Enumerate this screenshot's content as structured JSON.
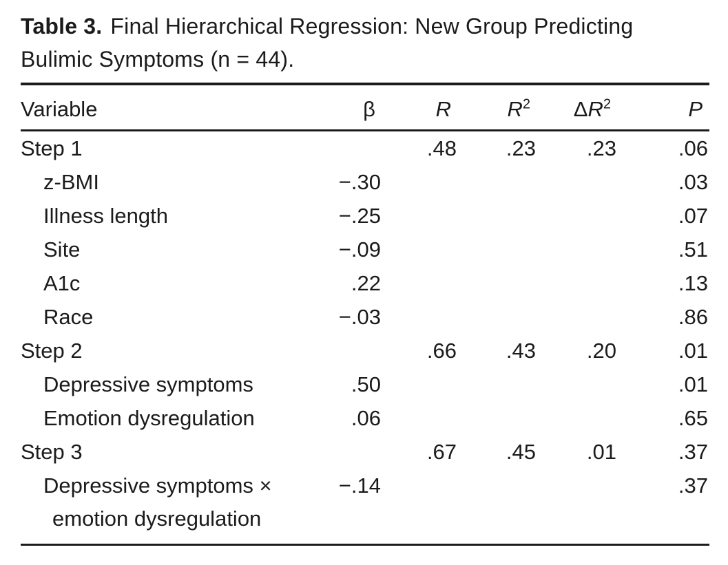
{
  "title": {
    "label": "Table 3.",
    "line1": "Final Hierarchical Regression: New Group Predicting",
    "line2": "Bulimic Symptoms (n = 44)."
  },
  "columns": {
    "variable": {
      "label": "Variable"
    },
    "beta": {
      "label": "β"
    },
    "r": {
      "letter": "R"
    },
    "r2": {
      "letter": "R",
      "sup": "2"
    },
    "dr2": {
      "prefix": "Δ",
      "letter": "R",
      "sup": "2"
    },
    "p": {
      "letter": "P"
    }
  },
  "rows": [
    {
      "variable": "Step 1",
      "indent": 0,
      "beta": "",
      "R": ".48",
      "R2": ".23",
      "dR2": ".23",
      "P": ".06"
    },
    {
      "variable": "z-BMI",
      "indent": 1,
      "beta": "−.30",
      "R": "",
      "R2": "",
      "dR2": "",
      "P": ".03"
    },
    {
      "variable": "Illness length",
      "indent": 1,
      "beta": "−.25",
      "R": "",
      "R2": "",
      "dR2": "",
      "P": ".07"
    },
    {
      "variable": "Site",
      "indent": 1,
      "beta": "−.09",
      "R": "",
      "R2": "",
      "dR2": "",
      "P": ".51"
    },
    {
      "variable": "A1c",
      "indent": 1,
      "beta": ".22",
      "R": "",
      "R2": "",
      "dR2": "",
      "P": ".13"
    },
    {
      "variable": "Race",
      "indent": 1,
      "beta": "−.03",
      "R": "",
      "R2": "",
      "dR2": "",
      "P": ".86"
    },
    {
      "variable": "Step 2",
      "indent": 0,
      "beta": "",
      "R": ".66",
      "R2": ".43",
      "dR2": ".20",
      "P": ".01"
    },
    {
      "variable": "Depressive symptoms",
      "indent": 1,
      "beta": ".50",
      "R": "",
      "R2": "",
      "dR2": "",
      "P": ".01"
    },
    {
      "variable": "Emotion dysregulation",
      "indent": 1,
      "beta": ".06",
      "R": "",
      "R2": "",
      "dR2": "",
      "P": ".65"
    },
    {
      "variable": "Step 3",
      "indent": 0,
      "beta": "",
      "R": ".67",
      "R2": ".45",
      "dR2": ".01",
      "P": ".37"
    },
    {
      "variable": "Depressive symptoms ×",
      "variable_line2": "emotion dysregulation",
      "indent": 1,
      "beta": "−.14",
      "R": "",
      "R2": "",
      "dR2": "",
      "P": ".37"
    }
  ],
  "colors": {
    "text": "#1b1b1b",
    "background": "#ffffff",
    "rule": "#1b1b1b"
  }
}
